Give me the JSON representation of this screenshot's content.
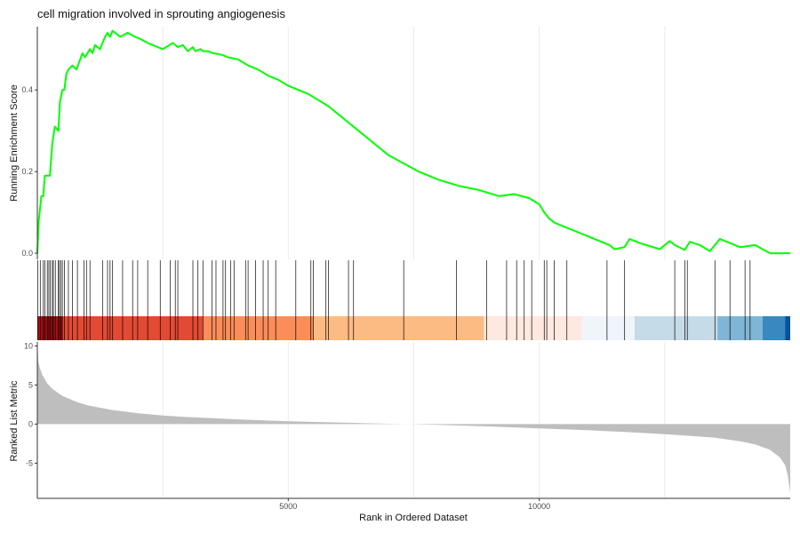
{
  "title": "cell migration involved in sprouting angiogenesis",
  "chart_data": [
    {
      "type": "line",
      "panel": "running-enrichment",
      "title": "cell migration involved in sprouting angiogenesis",
      "ylabel": "Running Enrichment Score",
      "xlim": [
        1,
        15000
      ],
      "ylim": [
        -0.015,
        0.555
      ],
      "yticks": [
        0.0,
        0.2,
        0.4
      ],
      "ytick_labels": [
        "0.0",
        "0.2",
        "0.4"
      ],
      "xgrid": [
        2500,
        5000,
        7500,
        10000,
        12500
      ],
      "color": "#00ff00",
      "series": [
        {
          "x": [
            1,
            30,
            80,
            120,
            150,
            250,
            300,
            350,
            420,
            450,
            500,
            540,
            580,
            620,
            700,
            780,
            900,
            950,
            1050,
            1100,
            1150,
            1250,
            1350,
            1400,
            1450,
            1500,
            1550,
            1650,
            1800,
            1950,
            2050,
            2200,
            2400,
            2500,
            2700,
            2800,
            2900,
            3000,
            3100,
            3150,
            3250,
            3300,
            3400,
            3500,
            3600,
            3700,
            3800,
            4000,
            4200,
            4400,
            4600,
            4800,
            5000,
            5200,
            5400,
            5600,
            5800,
            6000,
            6200,
            6400,
            6600,
            6800,
            7000,
            7300,
            7600,
            8000,
            8400,
            8800,
            9200,
            9500,
            9800,
            10000,
            10100,
            10200,
            10300,
            10400,
            10600,
            11000,
            11400,
            11500,
            11700,
            11800,
            12000,
            12400,
            12600,
            12700,
            12900,
            13000,
            13200,
            13400,
            13600,
            13800,
            14000,
            14300,
            14600,
            15000
          ],
          "y": [
            0.0,
            0.08,
            0.14,
            0.14,
            0.19,
            0.19,
            0.27,
            0.31,
            0.3,
            0.37,
            0.4,
            0.4,
            0.44,
            0.45,
            0.46,
            0.45,
            0.49,
            0.48,
            0.5,
            0.49,
            0.51,
            0.5,
            0.53,
            0.54,
            0.53,
            0.545,
            0.54,
            0.53,
            0.54,
            0.53,
            0.525,
            0.515,
            0.505,
            0.5,
            0.515,
            0.505,
            0.51,
            0.495,
            0.505,
            0.495,
            0.5,
            0.495,
            0.495,
            0.49,
            0.488,
            0.485,
            0.48,
            0.475,
            0.46,
            0.45,
            0.435,
            0.425,
            0.41,
            0.4,
            0.39,
            0.375,
            0.36,
            0.34,
            0.32,
            0.3,
            0.28,
            0.26,
            0.24,
            0.22,
            0.2,
            0.18,
            0.165,
            0.155,
            0.14,
            0.145,
            0.135,
            0.12,
            0.1,
            0.085,
            0.075,
            0.07,
            0.06,
            0.04,
            0.02,
            0.01,
            0.015,
            0.035,
            0.025,
            0.01,
            0.03,
            0.02,
            0.008,
            0.028,
            0.02,
            0.005,
            0.035,
            0.025,
            0.015,
            0.02,
            0.0,
            0.0
          ]
        }
      ]
    },
    {
      "type": "rug",
      "panel": "gene-hits",
      "hit_positions": [
        10,
        60,
        120,
        150,
        200,
        230,
        260,
        300,
        320,
        360,
        420,
        440,
        470,
        500,
        540,
        620,
        700,
        800,
        930,
        980,
        1050,
        1300,
        1400,
        1450,
        1500,
        1700,
        1900,
        2000,
        2200,
        2450,
        2650,
        2750,
        2800,
        3100,
        3200,
        3300,
        3480,
        3560,
        3700,
        3750,
        3850,
        3920,
        4150,
        4200,
        4350,
        4500,
        4600,
        4750,
        5150,
        5450,
        5500,
        5750,
        5800,
        6200,
        6300,
        7300,
        8350,
        8950,
        9350,
        9550,
        9700,
        9850,
        10100,
        10150,
        10300,
        10550,
        11350,
        11700,
        12700,
        12900,
        12950,
        13500,
        13800,
        14100,
        14200
      ],
      "color_bands": [
        {
          "x_start": 1,
          "x_end": 3300,
          "color": "#e34a33"
        },
        {
          "x_start": 3300,
          "x_end": 5500,
          "color": "#fc8d59"
        },
        {
          "x_start": 5500,
          "x_end": 8900,
          "color": "#fdbb84"
        },
        {
          "x_start": 8900,
          "x_end": 10850,
          "color": "#fee8df"
        },
        {
          "x_start": 10850,
          "x_end": 11900,
          "color": "#f0f4fb"
        },
        {
          "x_start": 11900,
          "x_end": 13550,
          "color": "#c6dbe8"
        },
        {
          "x_start": 13550,
          "x_end": 14450,
          "color": "#7fb5d6"
        },
        {
          "x_start": 14450,
          "x_end": 15000,
          "color": "#3a88c0"
        }
      ],
      "band_accents": [
        {
          "x_start": 1,
          "x_end": 500,
          "color": "#a50f15"
        },
        {
          "x_start": 14900,
          "x_end": 15000,
          "color": "#08519c"
        }
      ]
    },
    {
      "type": "area",
      "panel": "ranked-metric",
      "xlabel": "Rank in Ordered Dataset",
      "ylabel": "Ranked List Metric",
      "xlim": [
        1,
        15000
      ],
      "ylim": [
        -9.5,
        10.5
      ],
      "yticks": [
        -5,
        0,
        5,
        10
      ],
      "ytick_labels": [
        "-5",
        "0",
        "5",
        "10"
      ],
      "xticks": [
        5000,
        10000
      ],
      "xtick_labels": [
        "5000",
        "10000"
      ],
      "color": "#bebebe",
      "series": [
        {
          "x": [
            1,
            20,
            50,
            100,
            200,
            300,
            500,
            800,
            1000,
            1500,
            2000,
            2500,
            3000,
            3500,
            4000,
            5000,
            6000,
            7000,
            7400,
            8000,
            9000,
            10000,
            11000,
            12000,
            13000,
            13500,
            14000,
            14300,
            14600,
            14800,
            14900,
            14950,
            15000
          ],
          "y": [
            10.3,
            8.0,
            7.2,
            6.3,
            5.2,
            4.5,
            3.6,
            2.8,
            2.4,
            1.8,
            1.4,
            1.1,
            0.9,
            0.75,
            0.6,
            0.35,
            0.2,
            0.05,
            0.0,
            -0.1,
            -0.3,
            -0.55,
            -0.8,
            -1.1,
            -1.5,
            -1.75,
            -2.2,
            -2.6,
            -3.3,
            -4.3,
            -5.3,
            -6.5,
            -8.8
          ]
        }
      ]
    }
  ]
}
